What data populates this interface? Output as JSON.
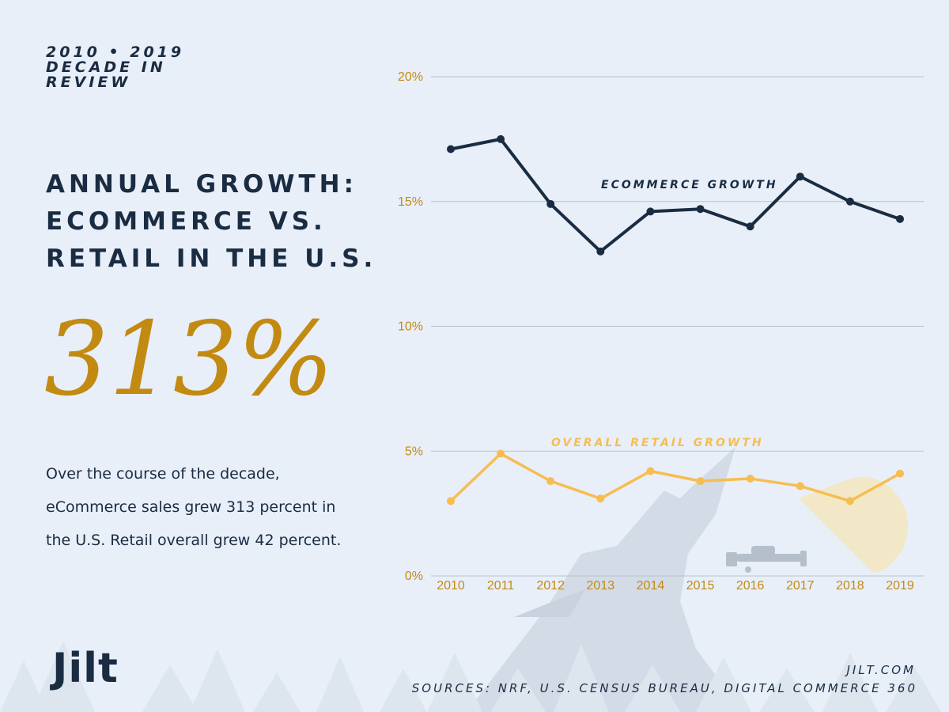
{
  "header": {
    "kicker_line1": "2010 • 2019",
    "kicker_line2": "DECADE IN",
    "kicker_line3": "REVIEW"
  },
  "headline": {
    "line1": "ANNUAL GROWTH:",
    "line2": "ECOMMERCE VS.",
    "line3": "RETAIL IN THE U.S."
  },
  "big_stat": "313%",
  "body": {
    "line1": "Over the course of the decade,",
    "line2": "eCommerce sales grew 313 percent in",
    "line3": "the U.S. Retail overall grew 42 percent."
  },
  "logo": "Jilt",
  "footer": {
    "site": "JILT.COM",
    "sources": "SOURCES: NRF, U.S. CENSUS BUREAU, DIGITAL COMMERCE 360"
  },
  "colors": {
    "background": "#e8eff9",
    "navy": "#1a2c42",
    "gold": "#c38a12",
    "retail_line": "#f7bd50",
    "grid": "#b9c2cf"
  },
  "chart_data": {
    "type": "line",
    "x": [
      "2010",
      "2011",
      "2012",
      "2013",
      "2014",
      "2015",
      "2016",
      "2017",
      "2018",
      "2019"
    ],
    "series": [
      {
        "name": "ECOMMERCE GROWTH",
        "color": "#1a2c42",
        "values": [
          17.1,
          17.5,
          14.9,
          13.0,
          14.6,
          14.7,
          14.0,
          16.0,
          15.0,
          14.3
        ]
      },
      {
        "name": "OVERALL RETAIL GROWTH",
        "color": "#f7bd50",
        "values": [
          3.0,
          4.9,
          3.8,
          3.1,
          4.2,
          3.8,
          3.9,
          3.6,
          3.0,
          4.1
        ]
      }
    ],
    "yticks": [
      "0%",
      "5%",
      "10%",
      "15%",
      "20%"
    ],
    "ylim": [
      0,
      20
    ],
    "grid": true,
    "xlabel": "",
    "ylabel": ""
  }
}
